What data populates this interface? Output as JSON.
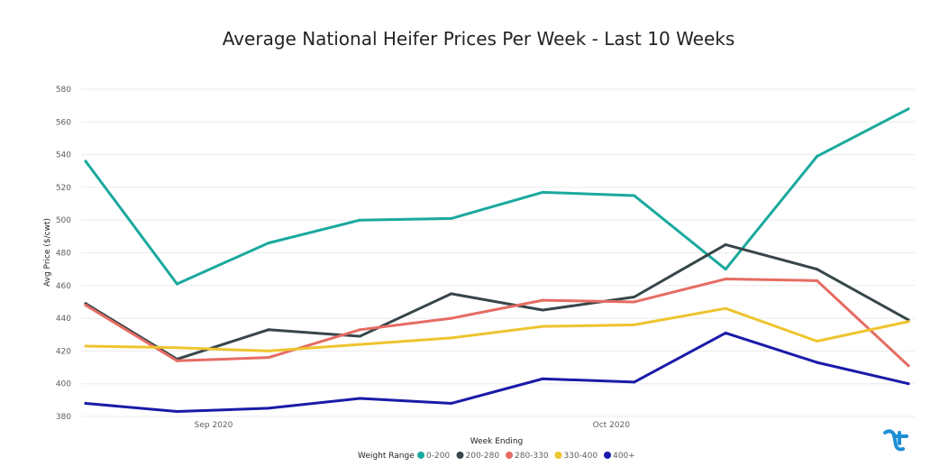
{
  "chart_data": {
    "type": "line",
    "title": "Average National Heifer Prices Per Week - Last 10 Weeks",
    "xlabel": "Week Ending",
    "ylabel": "Avg Price ($/cwt)",
    "x": [
      1,
      2,
      3,
      4,
      5,
      6,
      7,
      8,
      9,
      10
    ],
    "x_tick_labels": [
      {
        "label": "Sep 2020",
        "at": 2.4
      },
      {
        "label": "Oct 2020",
        "at": 6.75
      }
    ],
    "ylim": [
      380,
      580
    ],
    "yticks": [
      380,
      400,
      420,
      440,
      460,
      480,
      500,
      520,
      540,
      560,
      580
    ],
    "grid": true,
    "legend": {
      "title": "Weight Range",
      "placement": "bottom-center"
    },
    "series": [
      {
        "name": "0-200",
        "color": "#1aa99e",
        "values": [
          536,
          461,
          486,
          500,
          501,
          517,
          515,
          470,
          539,
          568
        ]
      },
      {
        "name": "200-280",
        "color": "#374649",
        "values": [
          449,
          415,
          433,
          429,
          455,
          445,
          453,
          485,
          470,
          439
        ]
      },
      {
        "name": "280-330",
        "color": "#e66c63",
        "values": [
          448,
          414,
          416,
          433,
          440,
          451,
          450,
          464,
          463,
          411
        ]
      },
      {
        "name": "330-400",
        "color": "#eec42f",
        "values": [
          423,
          422,
          420,
          424,
          428,
          435,
          436,
          446,
          426,
          438
        ]
      },
      {
        "name": "400+",
        "color": "#1a1aa9",
        "values": [
          388,
          383,
          385,
          391,
          388,
          403,
          401,
          431,
          413,
          400
        ]
      }
    ]
  },
  "logo_icon": "brand-logo-icon",
  "logo_color": "#1e8fd6"
}
